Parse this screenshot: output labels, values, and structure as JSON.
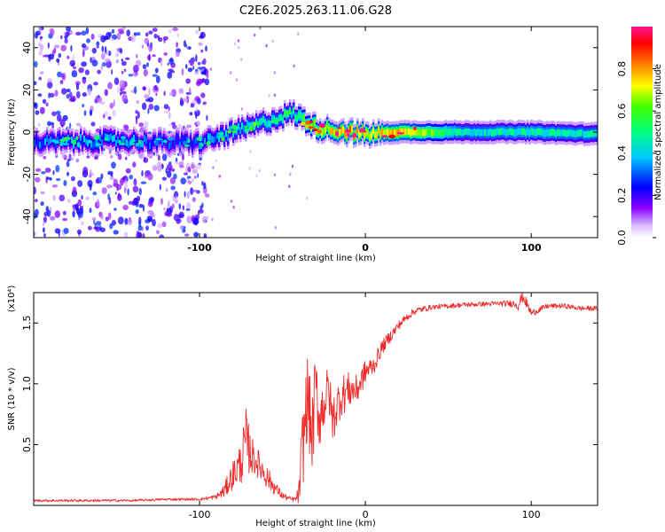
{
  "figure": {
    "title": "C2E6.2025.263.11.06.G28"
  },
  "chart_data": [
    {
      "type": "heatmap",
      "title": "C2E6.2025.263.11.06.G28",
      "xlabel": "Height of straight line (km)",
      "ylabel": "Frequency (Hz)",
      "xlim": [
        -200,
        140
      ],
      "ylim": [
        -50,
        50
      ],
      "xticks": [
        -100,
        0,
        100
      ],
      "xtick_labels": [
        "-100",
        "0",
        "100"
      ],
      "yticks": [
        -40,
        -20,
        0,
        20,
        40
      ],
      "ytick_labels": [
        "-40",
        "-20",
        "0",
        "20",
        "40"
      ],
      "colorbar": {
        "label": "Normalized spectral amplitude",
        "range": [
          0.0,
          1.0
        ],
        "ticks": [
          0.0,
          0.2,
          0.4,
          0.6,
          0.8
        ],
        "tick_labels": [
          "0.0",
          "0.2",
          "0.4",
          "0.6",
          "0.8"
        ],
        "colormap": [
          "#ffffff",
          "#8b00ff",
          "#0000ff",
          "#00c8ff",
          "#00ff80",
          "#ffff00",
          "#ff8000",
          "#ff0000",
          "#ff1493"
        ]
      },
      "ridge": {
        "description_x": [
          -200,
          -150,
          -120,
          -100,
          -80,
          -60,
          -45,
          -38,
          -30,
          -20,
          -10,
          0,
          20,
          60,
          100,
          140
        ],
        "center_freq": [
          -5,
          -4,
          -5,
          -5,
          0,
          5,
          9,
          6,
          2,
          1,
          0,
          -1,
          0,
          0,
          0,
          -1
        ],
        "peak_amplitude": [
          0.35,
          0.4,
          0.3,
          0.35,
          0.45,
          0.5,
          0.5,
          0.65,
          0.8,
          0.85,
          0.95,
          0.85,
          0.9,
          0.5,
          0.55,
          0.5
        ]
      },
      "noise_region": {
        "x_range": [
          -200,
          -95
        ],
        "freq_range": [
          -50,
          50
        ],
        "amplitude": 0.2
      }
    },
    {
      "type": "line",
      "xlabel": "Height of straight line (km)",
      "ylabel": "SNR (10 * v/v)",
      "scale_label": "(x10⁴)",
      "xlim": [
        -200,
        140
      ],
      "ylim": [
        0,
        1.75
      ],
      "xticks": [
        -100,
        0,
        100
      ],
      "xtick_labels": [
        "-100",
        "0",
        "100"
      ],
      "yticks": [
        0.5,
        1.0,
        1.5
      ],
      "ytick_labels": [
        "0.5",
        "1.0",
        "1.5"
      ],
      "color": "#ff3030",
      "series": [
        {
          "name": "SNR",
          "x": [
            -200,
            -180,
            -160,
            -140,
            -120,
            -100,
            -90,
            -85,
            -80,
            -75,
            -72,
            -70,
            -68,
            -65,
            -60,
            -55,
            -50,
            -45,
            -42,
            -40,
            -38,
            -35,
            -32,
            -30,
            -28,
            -25,
            -22,
            -20,
            -15,
            -10,
            -5,
            0,
            5,
            10,
            20,
            25,
            30,
            40,
            60,
            80,
            90,
            92,
            95,
            100,
            110,
            120,
            130,
            140
          ],
          "y": [
            0.04,
            0.04,
            0.04,
            0.04,
            0.05,
            0.05,
            0.07,
            0.12,
            0.25,
            0.35,
            0.55,
            0.45,
            0.4,
            0.35,
            0.25,
            0.15,
            0.08,
            0.05,
            0.05,
            0.1,
            0.45,
            0.9,
            0.55,
            1.0,
            0.7,
            0.85,
            0.95,
            0.7,
            0.9,
            0.95,
            0.95,
            1.1,
            1.15,
            1.3,
            1.48,
            1.55,
            1.6,
            1.63,
            1.65,
            1.66,
            1.66,
            1.65,
            1.72,
            1.58,
            1.64,
            1.64,
            1.62,
            1.62
          ],
          "noise_amplitude": [
            0.01,
            0.01,
            0.01,
            0.01,
            0.01,
            0.01,
            0.02,
            0.06,
            0.12,
            0.18,
            0.25,
            0.2,
            0.15,
            0.12,
            0.1,
            0.06,
            0.03,
            0.02,
            0.02,
            0.1,
            0.35,
            0.35,
            0.35,
            0.3,
            0.25,
            0.25,
            0.2,
            0.2,
            0.18,
            0.15,
            0.12,
            0.1,
            0.08,
            0.06,
            0.04,
            0.03,
            0.03,
            0.02,
            0.02,
            0.02,
            0.03,
            0.05,
            0.05,
            0.03,
            0.02,
            0.02,
            0.02,
            0.02
          ]
        }
      ]
    }
  ]
}
